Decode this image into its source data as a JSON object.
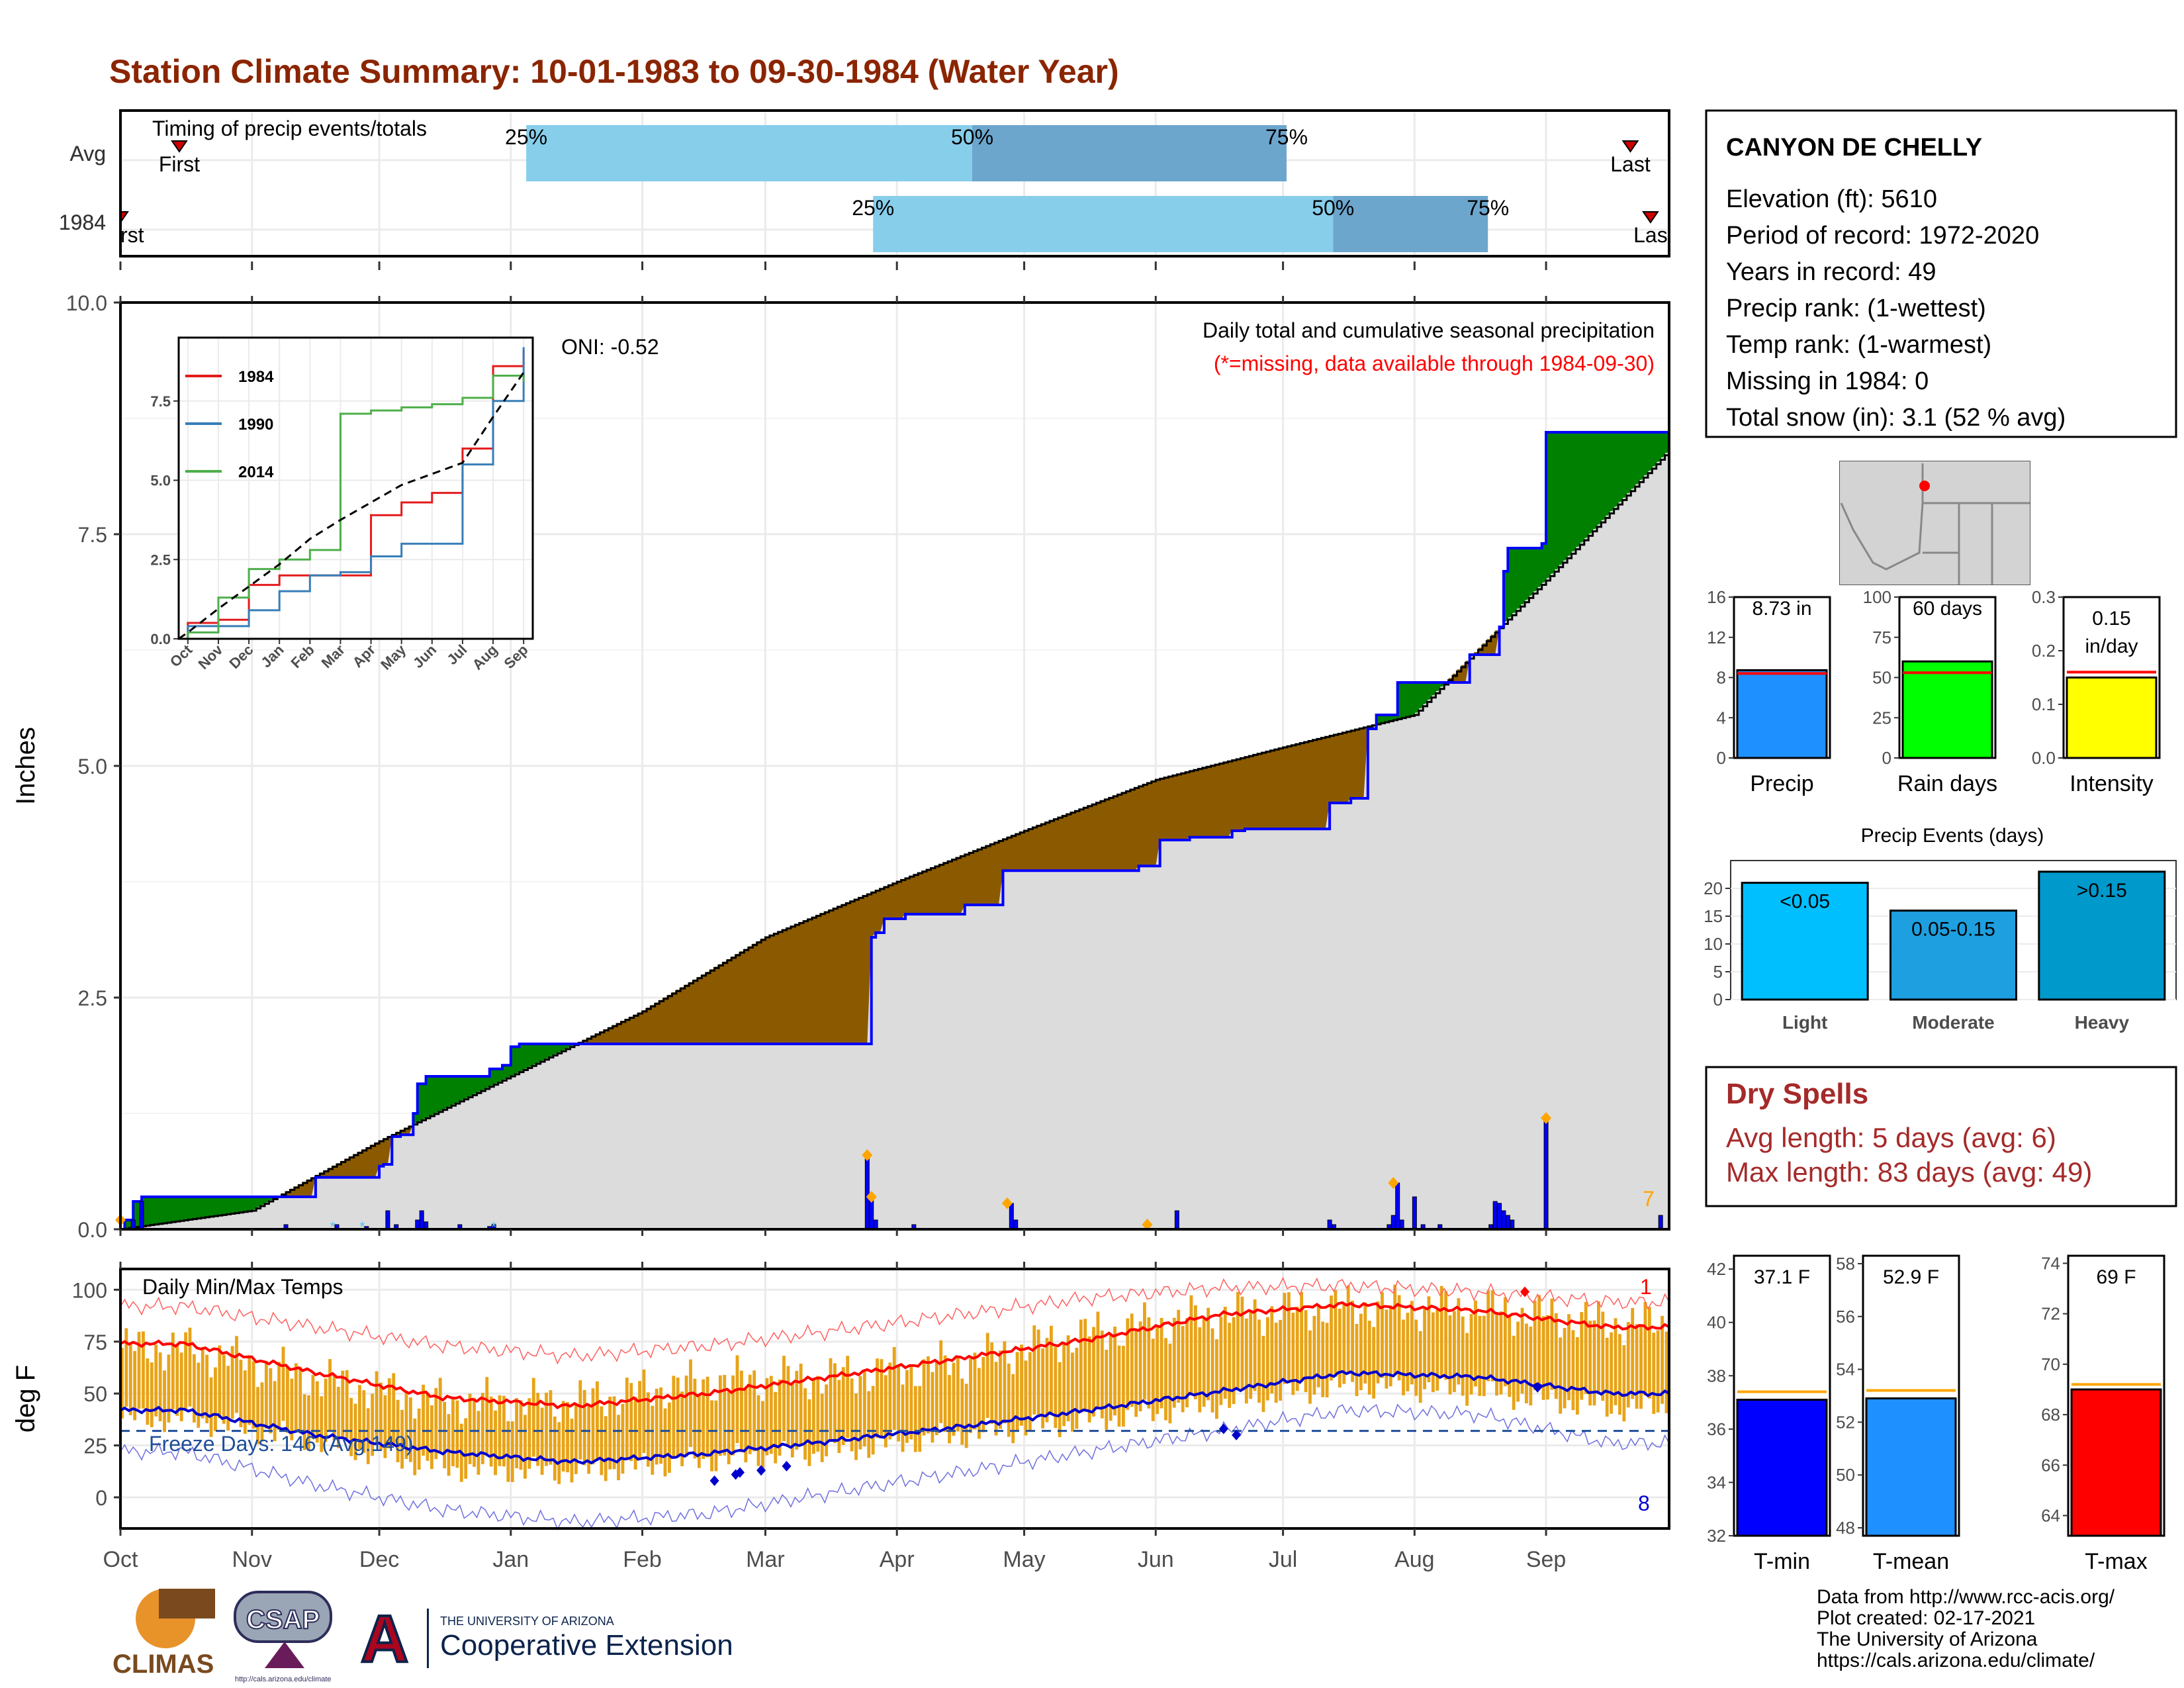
{
  "title": "Station Climate Summary: 10-01-1983 to 09-30-1984 (Water Year)",
  "colors": {
    "title": "#8B2500",
    "light_blue": "#87CEEB",
    "mid_blue": "#6CA6CD",
    "brown": "#8B5A00",
    "green": "#008000",
    "cum_fill": "#DCDCDC",
    "bars": "#0000FF",
    "orange": "#FFA500",
    "temp_bar": "#E8A317",
    "red": "#FF0000",
    "blue": "#0000CD",
    "dry": "#A52A2A"
  },
  "timing": {
    "label": "Timing of precip events/totals",
    "rows": [
      "Avg",
      "1984"
    ],
    "first_label": "First",
    "last_label": "Last",
    "avg": {
      "first": 0.038,
      "q25": 0.262,
      "q50": 0.55,
      "q75": 0.753,
      "last": 0.975
    },
    "y1984": {
      "first": 0.0,
      "q25": 0.486,
      "q50": 0.783,
      "q75": 0.883,
      "last": 0.988
    },
    "pct_labels": [
      "25%",
      "50%",
      "75%"
    ],
    "first_clip": "rst",
    "last_clip": "Las"
  },
  "months": [
    "Oct",
    "Nov",
    "Dec",
    "Jan",
    "Feb",
    "Mar",
    "Apr",
    "May",
    "Jun",
    "Jul",
    "Aug",
    "Sep"
  ],
  "chart_data": [
    {
      "type": "area",
      "name": "cumulative_precip",
      "ylabel": "Inches",
      "ylim": [
        0,
        10
      ],
      "yticks": [
        "0.0",
        "2.5",
        "5.0",
        "7.5",
        "10.0"
      ],
      "subtitle": "Daily total and cumulative seasonal precipitation",
      "note": "(*=missing, data available through 1984-09-30)",
      "oni": "ONI: -0.52",
      "corner_count": "7",
      "avg_cumulative_by_month": [
        0.2,
        0.95,
        1.65,
        2.35,
        3.15,
        3.75,
        4.3,
        4.85,
        5.2,
        5.55,
        7.0,
        8.4
      ],
      "year_cumulative_steps": [
        [
          0,
          0.0
        ],
        [
          1,
          0.1
        ],
        [
          3,
          0.3
        ],
        [
          5,
          0.35
        ],
        [
          6,
          0.35
        ],
        [
          46,
          0.56
        ],
        [
          55,
          0.56
        ],
        [
          61,
          0.68
        ],
        [
          62,
          0.7
        ],
        [
          64,
          1.0
        ],
        [
          66,
          1.02
        ],
        [
          69,
          1.25
        ],
        [
          70,
          1.57
        ],
        [
          72,
          1.65
        ],
        [
          87,
          1.73
        ],
        [
          90,
          1.77
        ],
        [
          92,
          1.97
        ],
        [
          94,
          2.0
        ],
        [
          176,
          2.0
        ],
        [
          177,
          3.15
        ],
        [
          178,
          3.2
        ],
        [
          180,
          3.35
        ],
        [
          185,
          3.4
        ],
        [
          199,
          3.5
        ],
        [
          208,
          3.87
        ],
        [
          240,
          3.92
        ],
        [
          245,
          4.2
        ],
        [
          252,
          4.23
        ],
        [
          262,
          4.3
        ],
        [
          265,
          4.32
        ],
        [
          285,
          4.6
        ],
        [
          290,
          4.65
        ],
        [
          294,
          5.4
        ],
        [
          296,
          5.55
        ],
        [
          301,
          5.9
        ],
        [
          318,
          6.2
        ],
        [
          325,
          6.5
        ],
        [
          326,
          7.1
        ],
        [
          327,
          7.35
        ],
        [
          335,
          7.4
        ],
        [
          336,
          8.6
        ],
        [
          365,
          8.73
        ]
      ],
      "daily_bars": [
        [
          3,
          0.1
        ],
        [
          5,
          0.3
        ],
        [
          39,
          0.05
        ],
        [
          51,
          0.05
        ],
        [
          58,
          0.03
        ],
        [
          63,
          0.2
        ],
        [
          65,
          0.05
        ],
        [
          70,
          0.1
        ],
        [
          71,
          0.2
        ],
        [
          72,
          0.08
        ],
        [
          80,
          0.05
        ],
        [
          87,
          0.03
        ],
        [
          88,
          0.05
        ],
        [
          176,
          0.8
        ],
        [
          177,
          0.35
        ],
        [
          178,
          0.1
        ],
        [
          187,
          0.05
        ],
        [
          210,
          0.28
        ],
        [
          211,
          0.1
        ],
        [
          242,
          0.05
        ],
        [
          249,
          0.2
        ],
        [
          285,
          0.1
        ],
        [
          286,
          0.05
        ],
        [
          299,
          0.05
        ],
        [
          300,
          0.15
        ],
        [
          301,
          0.5
        ],
        [
          302,
          0.1
        ],
        [
          305,
          0.35
        ],
        [
          307,
          0.05
        ],
        [
          311,
          0.05
        ],
        [
          323,
          0.05
        ],
        [
          324,
          0.3
        ],
        [
          325,
          0.28
        ],
        [
          326,
          0.2
        ],
        [
          327,
          0.15
        ],
        [
          328,
          0.1
        ],
        [
          336,
          1.2
        ],
        [
          363,
          0.15
        ]
      ],
      "orange_markers": [
        [
          0,
          0.1
        ],
        [
          176,
          0.8
        ],
        [
          177,
          0.35
        ],
        [
          209,
          0.28
        ],
        [
          242,
          0.05
        ],
        [
          300,
          0.5
        ],
        [
          336,
          1.2
        ]
      ],
      "cyan_markers": [
        [
          50,
          0.03
        ],
        [
          57,
          0.03
        ],
        [
          88,
          0.03
        ]
      ]
    },
    {
      "type": "line",
      "name": "inset_cumulative",
      "ylim": [
        0,
        9.5
      ],
      "yticks": [
        "0.0",
        "2.5",
        "5.0",
        "7.5"
      ],
      "categories": [
        "Oct",
        "Nov",
        "Dec",
        "Jan",
        "Feb",
        "Mar",
        "Apr",
        "May",
        "Jun",
        "Jul",
        "Aug",
        "Sep"
      ],
      "series": [
        {
          "name": "1984",
          "color": "#E41A1C",
          "values": [
            0.5,
            0.6,
            1.7,
            2.0,
            2.0,
            2.0,
            3.9,
            4.3,
            4.6,
            6.0,
            8.6,
            9.1
          ]
        },
        {
          "name": "1990",
          "color": "#377EB8",
          "values": [
            0.4,
            0.4,
            0.9,
            1.5,
            2.0,
            2.1,
            2.6,
            3.0,
            3.0,
            5.5,
            7.5,
            9.2
          ]
        },
        {
          "name": "2014",
          "color": "#4DAF4A",
          "values": [
            0.2,
            1.3,
            2.2,
            2.5,
            2.8,
            7.1,
            7.2,
            7.3,
            7.4,
            7.6,
            8.3,
            8.1
          ]
        },
        {
          "name": "avg",
          "color": "#000000",
          "dashed": true,
          "values": [
            0.2,
            0.95,
            1.65,
            2.35,
            3.15,
            3.75,
            4.3,
            4.85,
            5.2,
            5.55,
            7.0,
            8.4
          ]
        }
      ]
    },
    {
      "type": "bar",
      "name": "precip_summary",
      "panels": [
        {
          "label": "Precip",
          "value": 8.73,
          "avg": 8.4,
          "ymax": 16,
          "ticks": [
            0,
            4,
            8,
            12,
            16
          ],
          "text": "8.73 in",
          "color": "#1E90FF"
        },
        {
          "label": "Rain days",
          "value": 60,
          "avg": 53,
          "ymax": 100,
          "ticks": [
            0,
            25,
            50,
            75,
            100
          ],
          "text": "60 days",
          "color": "#00FF00"
        },
        {
          "label": "Intensity",
          "value": 0.15,
          "avg": 0.16,
          "ymax": 0.3,
          "ticks": [
            "0.0",
            "0.1",
            "0.2",
            "0.3"
          ],
          "text": "0.15\nin/day",
          "color": "#FFFF00"
        }
      ]
    },
    {
      "type": "bar",
      "name": "precip_events",
      "title": "Precip Events (days)",
      "categories": [
        "Light",
        "Moderate",
        "Heavy"
      ],
      "values": [
        21,
        16,
        23
      ],
      "ylim": [
        0,
        25
      ],
      "yticks": [
        0,
        5,
        10,
        15,
        20
      ],
      "bar_labels": [
        "<0.05",
        "0.05-0.15",
        ">0.15"
      ],
      "colors": [
        "#00BFFF",
        "#1E9FE0",
        "#0099CC"
      ]
    },
    {
      "type": "line",
      "name": "daily_temps",
      "ylabel": "deg F",
      "title": "Daily Min/Max Temps",
      "ylim": [
        -15,
        110
      ],
      "yticks": [
        0,
        25,
        50,
        75,
        100
      ],
      "freeze_label": "Freeze Days: 146 (Avg:149)",
      "freeze_line": 32,
      "count_max": "1",
      "count_min": "8",
      "avg_max_monthly": [
        74,
        60,
        48,
        44,
        50,
        58,
        67,
        76,
        88,
        93,
        90,
        82
      ],
      "avg_min_monthly": [
        42,
        30,
        22,
        17,
        21,
        27,
        34,
        42,
        51,
        60,
        58,
        50
      ],
      "record_max_monthly": [
        92,
        82,
        73,
        68,
        73,
        80,
        88,
        96,
        101,
        102,
        99,
        94
      ],
      "record_min_monthly": [
        22,
        6,
        -6,
        -12,
        -8,
        2,
        12,
        22,
        32,
        42,
        40,
        26
      ],
      "obs_max_monthly": [
        72,
        57,
        46,
        46,
        56,
        58,
        65,
        79,
        88,
        92,
        91,
        84
      ],
      "obs_min_monthly": [
        42,
        31,
        18,
        16,
        22,
        26,
        34,
        41,
        49,
        58,
        55,
        47
      ]
    },
    {
      "type": "bar",
      "name": "temp_summary",
      "panels": [
        {
          "label": "T-min",
          "value": 37.1,
          "avg": 37.4,
          "ymin": 32,
          "ymax": 42.5,
          "ticks": [
            32,
            34,
            36,
            38,
            40,
            42
          ],
          "text": "37.1 F",
          "color": "#0000FF"
        },
        {
          "label": "T-mean",
          "value": 52.9,
          "avg": 53.2,
          "ymin": 47.7,
          "ymax": 58.3,
          "ticks": [
            48,
            50,
            52,
            54,
            56,
            58
          ],
          "text": "52.9 F",
          "color": "#1E90FF"
        },
        {
          "label": "T-max",
          "value": 69,
          "avg": 69.2,
          "ymin": 63.2,
          "ymax": 74.3,
          "ticks": [
            64,
            66,
            68,
            70,
            72,
            74
          ],
          "text": "69 F",
          "color": "#FF0000"
        }
      ]
    }
  ],
  "station": {
    "name": "CANYON DE CHELLY",
    "lines": [
      "Elevation (ft): 5610",
      "Period of record: 1972-2020",
      "Years in record: 49",
      "Precip rank:  (1-wettest)",
      "Temp rank:  (1-warmest)",
      "Missing in 1984: 0",
      "Total snow (in): 3.1 (52 % avg)"
    ]
  },
  "dry_spells": {
    "title": "Dry Spells",
    "avg_line": "Avg length: 5 days (avg: 6)",
    "max_line": "Max length: 83 days (avg: 49)"
  },
  "footer": {
    "credits": [
      "Data from http://www.rcc-acis.org/",
      "Plot created: 02-17-2021",
      "The University of Arizona",
      "https://cals.arizona.edu/climate/"
    ],
    "logos": {
      "climas": "CLIMAS",
      "csap": "CSAP",
      "csap_url": "http://cals.arizona.edu/climate",
      "ua_small": "THE UNIVERSITY OF ARIZONA",
      "ua_big": "Cooperative Extension"
    }
  }
}
